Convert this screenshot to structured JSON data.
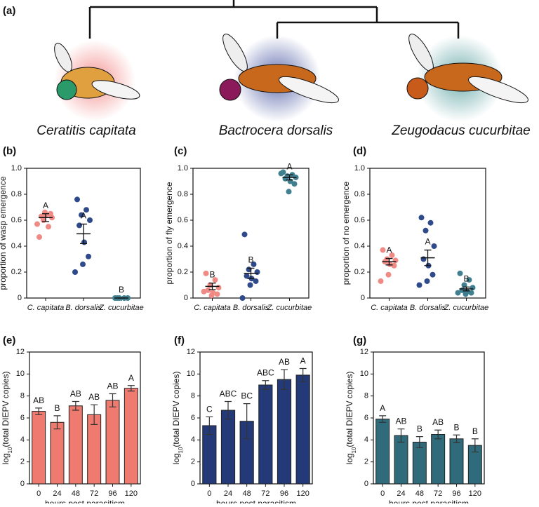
{
  "tree": {
    "label": "(a)",
    "species": [
      "Ceratitis capitata",
      "Bactrocera dorsalis",
      "Zeugodacus cucurbitae"
    ]
  },
  "chart_data": [
    {
      "type": "dot",
      "panel_label": "(b)",
      "ylabel": "proportion of wasp emergence",
      "categories": [
        "C. capitata",
        "B. dorsalis",
        "Z. cucurbitae"
      ],
      "colors": [
        "#ef8a85",
        "#2f4a8a",
        "#3f7f8f"
      ],
      "points": [
        [
          0.47,
          0.55,
          0.6,
          0.62,
          0.63,
          0.64,
          0.65,
          0.66,
          0.57
        ],
        [
          0.76,
          0.68,
          0.64,
          0.6,
          0.56,
          0.43,
          0.32,
          0.26,
          0.2
        ],
        [
          0,
          0,
          0,
          0,
          0
        ]
      ],
      "means": [
        0.62,
        0.495,
        0
      ],
      "errors": [
        0.03,
        0.075,
        0
      ],
      "letters": [
        "A",
        "A",
        "B"
      ],
      "ylim": [
        0,
        1
      ],
      "yticks": [
        0,
        0.2,
        0.4,
        0.6,
        0.8,
        {
          "value": 1,
          "label": "1.0"
        }
      ]
    },
    {
      "type": "dot",
      "panel_label": "(c)",
      "ylabel": "proportion of fly emergence",
      "categories": [
        "C. capitata",
        "B. dorsalis",
        "Z. cucurbitae"
      ],
      "colors": [
        "#ef8a85",
        "#2f4a8a",
        "#3f7f8f"
      ],
      "points": [
        [
          0.19,
          0.14,
          0.1,
          0.08,
          0.06,
          0.04,
          0.03,
          0.02,
          0.05
        ],
        [
          0.49,
          0.26,
          0.22,
          0.2,
          0.17,
          0.15,
          0.13,
          0.1,
          0
        ],
        [
          0.97,
          0.95,
          0.94,
          0.93,
          0.92,
          0.9,
          0.88,
          0.82,
          0.96
        ]
      ],
      "means": [
        0.09,
        0.19,
        0.93
      ],
      "errors": [
        0.025,
        0.04,
        0.02
      ],
      "letters": [
        "B",
        "B",
        "A"
      ],
      "ylim": [
        0,
        1
      ],
      "yticks": [
        0,
        0.2,
        0.4,
        0.6,
        0.8,
        {
          "value": 1,
          "label": "1.0"
        }
      ]
    },
    {
      "type": "dot",
      "panel_label": "(d)",
      "ylabel": "proportion of no emergence",
      "categories": [
        "C. capitata",
        "B. dorsalis",
        "Z. cucurbitae"
      ],
      "colors": [
        "#ef8a85",
        "#2f4a8a",
        "#3f7f8f"
      ],
      "points": [
        [
          0.37,
          0.33,
          0.3,
          0.29,
          0.28,
          0.26,
          0.25,
          0.18,
          0.13
        ],
        [
          0.62,
          0.58,
          0.52,
          0.4,
          0.3,
          0.25,
          0.18,
          0.13,
          0.1
        ],
        [
          0.19,
          0.14,
          0.1,
          0.08,
          0.06,
          0.05,
          0.04,
          0.03,
          0.04
        ]
      ],
      "means": [
        0.28,
        0.31,
        0.07
      ],
      "errors": [
        0.025,
        0.06,
        0.015
      ],
      "letters": [
        "A",
        "A",
        "B"
      ],
      "ylim": [
        0,
        1
      ],
      "yticks": [
        0,
        0.2,
        0.4,
        0.6,
        0.8,
        {
          "value": 1,
          "label": "1.0"
        }
      ]
    },
    {
      "type": "bar",
      "panel_label": "(e)",
      "ylabel_parts": [
        "log",
        "10",
        "(total DIEPV copies)"
      ],
      "xlabel": "hours post parasitism",
      "color": "#ef7a6f",
      "categories": [
        "0",
        "24",
        "48",
        "72",
        "96",
        "120"
      ],
      "values": [
        6.6,
        5.6,
        7.1,
        6.3,
        7.6,
        8.7
      ],
      "errors": [
        0.3,
        0.6,
        0.4,
        0.9,
        0.6,
        0.25
      ],
      "letters": [
        "AB",
        "B",
        "AB",
        "AB",
        "AB",
        "A"
      ],
      "ylim": [
        0,
        12
      ],
      "yticks": [
        0,
        2,
        4,
        6,
        8,
        10,
        12
      ]
    },
    {
      "type": "bar",
      "panel_label": "(f)",
      "ylabel_parts": [
        "log",
        "10",
        "(total DIEPV copies)"
      ],
      "xlabel": "hours post parasitism",
      "color": "#243a78",
      "categories": [
        "0",
        "24",
        "48",
        "72",
        "96",
        "120"
      ],
      "values": [
        5.3,
        6.7,
        5.7,
        9.0,
        9.5,
        9.9
      ],
      "errors": [
        0.8,
        0.8,
        1.6,
        0.4,
        0.9,
        0.6
      ],
      "letters": [
        "C",
        "ABC",
        "BC",
        "ABC",
        "AB",
        "A"
      ],
      "ylim": [
        0,
        12
      ],
      "yticks": [
        0,
        2,
        4,
        6,
        8,
        10,
        12
      ]
    },
    {
      "type": "bar",
      "panel_label": "(g)",
      "ylabel_parts": [
        "log",
        "10",
        "(total DIEPV copies)"
      ],
      "xlabel": "hours post parasitism",
      "color": "#2f6b7a",
      "categories": [
        "0",
        "24",
        "48",
        "72",
        "96",
        "120"
      ],
      "values": [
        5.9,
        4.4,
        3.8,
        4.5,
        4.1,
        3.5
      ],
      "errors": [
        0.3,
        0.6,
        0.5,
        0.4,
        0.35,
        0.6
      ],
      "letters": [
        "A",
        "AB",
        "B",
        "AB",
        "B",
        "B"
      ],
      "ylim": [
        0,
        12
      ],
      "yticks": [
        0,
        2,
        4,
        6,
        8,
        10,
        12
      ]
    }
  ]
}
